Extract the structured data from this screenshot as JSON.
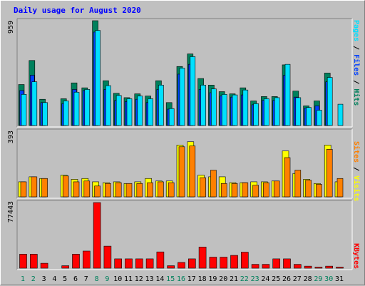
{
  "title": "Daily usage for August 2020",
  "colors": {
    "background": "#c0c0c0",
    "panel": "#c0c0c0",
    "hits": "#00805c",
    "files": "#0040ff",
    "pages": "#00e0ff",
    "visits": "#ffff00",
    "sites": "#ff8000",
    "kbytes": "#ff0000",
    "title": "#0000ff",
    "weekend_day": "#00805c",
    "weekday": "#000000",
    "axis_max": "#000000"
  },
  "chart_data": [
    {
      "type": "bar",
      "name": "hits-files-pages",
      "ymax_label": "959",
      "ylim": [
        0,
        959
      ],
      "categories": [
        "1",
        "2",
        "3",
        "4",
        "5",
        "6",
        "7",
        "8",
        "9",
        "10",
        "11",
        "12",
        "13",
        "14",
        "15",
        "16",
        "17",
        "18",
        "19",
        "20",
        "21",
        "22",
        "23",
        "24",
        "25",
        "26",
        "27",
        "28",
        "29",
        "30",
        "31"
      ],
      "weekend_days": [
        "1",
        "2",
        "8",
        "9",
        "15",
        "16",
        "22",
        "23",
        "29",
        "30"
      ],
      "series": [
        {
          "name": "Hits",
          "values": [
            375,
            595,
            240,
            0,
            245,
            390,
            345,
            959,
            410,
            295,
            255,
            290,
            270,
            410,
            210,
            540,
            655,
            430,
            370,
            310,
            290,
            345,
            225,
            265,
            265,
            555,
            315,
            180,
            225,
            480,
            0
          ]
        },
        {
          "name": "Files",
          "values": [
            320,
            460,
            210,
            0,
            200,
            330,
            320,
            855,
            330,
            230,
            220,
            240,
            210,
            330,
            150,
            470,
            560,
            330,
            300,
            270,
            260,
            280,
            190,
            230,
            230,
            460,
            260,
            160,
            180,
            400,
            0
          ]
        },
        {
          "name": "Pages",
          "values": [
            285,
            400,
            210,
            0,
            225,
            305,
            330,
            870,
            365,
            275,
            245,
            270,
            245,
            370,
            155,
            525,
            630,
            370,
            335,
            285,
            280,
            325,
            200,
            245,
            255,
            560,
            255,
            165,
            140,
            440,
            195
          ]
        }
      ],
      "legend": [
        "Hits",
        "Files",
        "Pages"
      ]
    },
    {
      "type": "bar",
      "name": "visits-sites",
      "ymax_label": "393",
      "ylim": [
        0,
        393
      ],
      "categories": [
        "1",
        "2",
        "3",
        "4",
        "5",
        "6",
        "7",
        "8",
        "9",
        "10",
        "11",
        "12",
        "13",
        "14",
        "15",
        "16",
        "17",
        "18",
        "19",
        "20",
        "21",
        "22",
        "23",
        "24",
        "25",
        "26",
        "27",
        "28",
        "29",
        "30",
        "31"
      ],
      "series": [
        {
          "name": "Visits",
          "values": [
            90,
            120,
            110,
            0,
            130,
            105,
            110,
            90,
            85,
            90,
            80,
            90,
            110,
            95,
            95,
            310,
            330,
            130,
            120,
            120,
            85,
            85,
            90,
            90,
            95,
            275,
            140,
            105,
            80,
            310,
            90
          ]
        },
        {
          "name": "Sites",
          "values": [
            90,
            120,
            110,
            0,
            125,
            90,
            95,
            65,
            80,
            85,
            80,
            80,
            85,
            90,
            85,
            300,
            305,
            115,
            160,
            80,
            80,
            85,
            70,
            85,
            95,
            235,
            160,
            100,
            75,
            285,
            110
          ]
        }
      ],
      "legend": [
        "Visits",
        "Sites"
      ]
    },
    {
      "type": "bar",
      "name": "kbytes",
      "ymax_label": "77443",
      "ylim": [
        0,
        77443
      ],
      "categories": [
        "1",
        "2",
        "3",
        "4",
        "5",
        "6",
        "7",
        "8",
        "9",
        "10",
        "11",
        "12",
        "13",
        "14",
        "15",
        "16",
        "17",
        "18",
        "19",
        "20",
        "21",
        "22",
        "23",
        "24",
        "25",
        "26",
        "27",
        "28",
        "29",
        "30",
        "31"
      ],
      "series": [
        {
          "name": "KBytes",
          "values": [
            16500,
            16500,
            5800,
            0,
            2900,
            16500,
            20200,
            77443,
            26000,
            11000,
            11000,
            11000,
            11000,
            19200,
            2900,
            6800,
            11000,
            25000,
            13000,
            13000,
            15100,
            18900,
            4500,
            4500,
            11000,
            11000,
            4500,
            2400,
            1200,
            2400,
            1200
          ]
        }
      ],
      "legend": [
        "KBytes"
      ]
    }
  ],
  "legends": {
    "top": [
      {
        "text": "Pages",
        "color": "#00e0ff"
      },
      {
        "text": " / ",
        "color": "#000000"
      },
      {
        "text": "Files",
        "color": "#0040ff"
      },
      {
        "text": " / ",
        "color": "#000000"
      },
      {
        "text": "Hits",
        "color": "#00805c"
      }
    ],
    "mid": [
      {
        "text": "Sites",
        "color": "#ff8000"
      },
      {
        "text": " / ",
        "color": "#000000"
      },
      {
        "text": "Visits",
        "color": "#ffff00"
      }
    ],
    "bottom": [
      {
        "text": "KBytes",
        "color": "#ff0000"
      }
    ]
  }
}
